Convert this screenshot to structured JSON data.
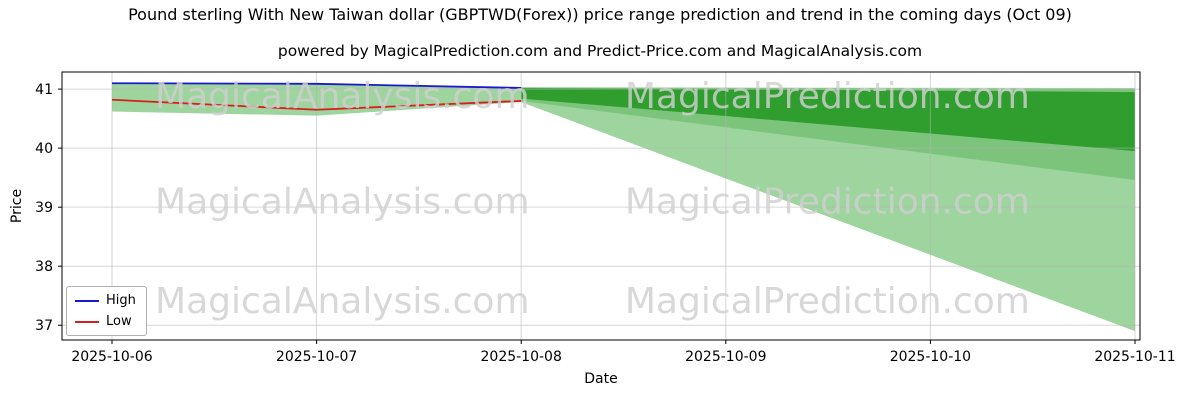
{
  "chart_data": {
    "type": "line",
    "title": "Pound sterling With New Taiwan dollar (GBPTWD(Forex)) price range prediction and trend in the coming days (Oct 09)",
    "subtitle": "powered by MagicalPrediction.com and Predict-Price.com and MagicalAnalysis.com",
    "xlabel": "Date",
    "ylabel": "Price",
    "x_ticks": [
      "2025-10-06",
      "2025-10-07",
      "2025-10-08",
      "2025-10-09",
      "2025-10-10",
      "2025-10-11"
    ],
    "y_ticks": [
      37,
      38,
      39,
      40,
      41
    ],
    "ylim": [
      36.75,
      41.29
    ],
    "grid": true,
    "legend_position": "lower left",
    "series": [
      {
        "name": "High",
        "color": "#1a1acc",
        "x": [
          0,
          1,
          2
        ],
        "values": [
          41.1,
          41.09,
          41.02
        ]
      },
      {
        "name": "Low",
        "color": "#d62020",
        "x": [
          0,
          1,
          2
        ],
        "values": [
          40.82,
          40.65,
          40.8
        ]
      }
    ],
    "history_band": {
      "x": [
        0,
        1,
        2
      ],
      "upper": [
        41.1,
        41.09,
        41.02
      ],
      "lower": [
        40.62,
        40.55,
        40.78
      ],
      "color": "#9ed49e"
    },
    "forecast_bands": [
      {
        "x": [
          2,
          5
        ],
        "upper": [
          41.03,
          41.02
        ],
        "lower": [
          40.78,
          36.9
        ],
        "color": "#9ed49e"
      },
      {
        "x": [
          2,
          5
        ],
        "upper": [
          41.03,
          41.0
        ],
        "lower": [
          40.8,
          39.46
        ],
        "color": "#7cc47c"
      },
      {
        "x": [
          2,
          5
        ],
        "upper": [
          41.02,
          40.95
        ],
        "lower": [
          40.84,
          39.95
        ],
        "color": "#2f9e2f"
      }
    ],
    "watermarks": {
      "color": "#cfcfcf",
      "opacity": 0.82,
      "font_size": 36,
      "items": [
        {
          "text": "MagicalAnalysis.com",
          "xf": 0.26,
          "yf": 0.085
        },
        {
          "text": "MagicalPrediction.com",
          "xf": 0.71,
          "yf": 0.085
        },
        {
          "text": "MagicalAnalysis.com",
          "xf": 0.26,
          "yf": 0.48
        },
        {
          "text": "MagicalPrediction.com",
          "xf": 0.71,
          "yf": 0.48
        },
        {
          "text": "MagicalAnalysis.com",
          "xf": 0.26,
          "yf": 0.85
        },
        {
          "text": "MagicalPrediction.com",
          "xf": 0.71,
          "yf": 0.85
        }
      ]
    }
  }
}
